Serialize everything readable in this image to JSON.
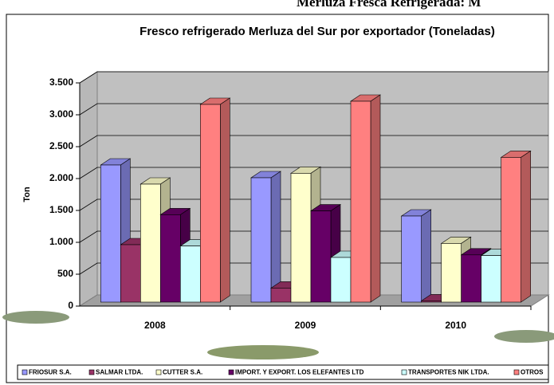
{
  "page_title": "Merluza Fresca Refrigerada: M",
  "chart_data": {
    "type": "bar3d",
    "title": "Fresco refrigerado Merluza del Sur por exportador (Toneladas)",
    "y_label": "Ton",
    "categories": [
      "2008",
      "2009",
      "2010"
    ],
    "series": [
      {
        "name": "FRIOSUR S.A.",
        "color": "#9999ff",
        "values": [
          2150,
          1950,
          1350
        ]
      },
      {
        "name": "SALMAR LTDA.",
        "color": "#993366",
        "values": [
          900,
          220,
          20
        ]
      },
      {
        "name": "CUTTER S.A.",
        "color": "#ffffcc",
        "values": [
          1850,
          2020,
          920
        ]
      },
      {
        "name": "IMPORT. Y EXPORT. LOS ELEFANTES LTD",
        "color": "#660066",
        "values": [
          1370,
          1430,
          740
        ]
      },
      {
        "name": "TRANSPORTES NIK LTDA.",
        "color": "#ccffff",
        "values": [
          880,
          700,
          730
        ]
      },
      {
        "name": "OTROS",
        "color": "#ff8080",
        "values": [
          3100,
          3150,
          2270
        ]
      }
    ],
    "ylim": [
      0,
      3500
    ],
    "yticks": [
      0,
      500,
      {
        "value": 1000,
        "label": "1.000"
      },
      {
        "value": 1500,
        "label": "1.500"
      },
      {
        "value": 2000,
        "label": "2.000"
      },
      {
        "value": 2500,
        "label": "2.500"
      },
      {
        "value": 3000,
        "label": "3.000"
      },
      {
        "value": 3500,
        "label": "3.500"
      }
    ],
    "grid": true,
    "legend": "bottom"
  }
}
